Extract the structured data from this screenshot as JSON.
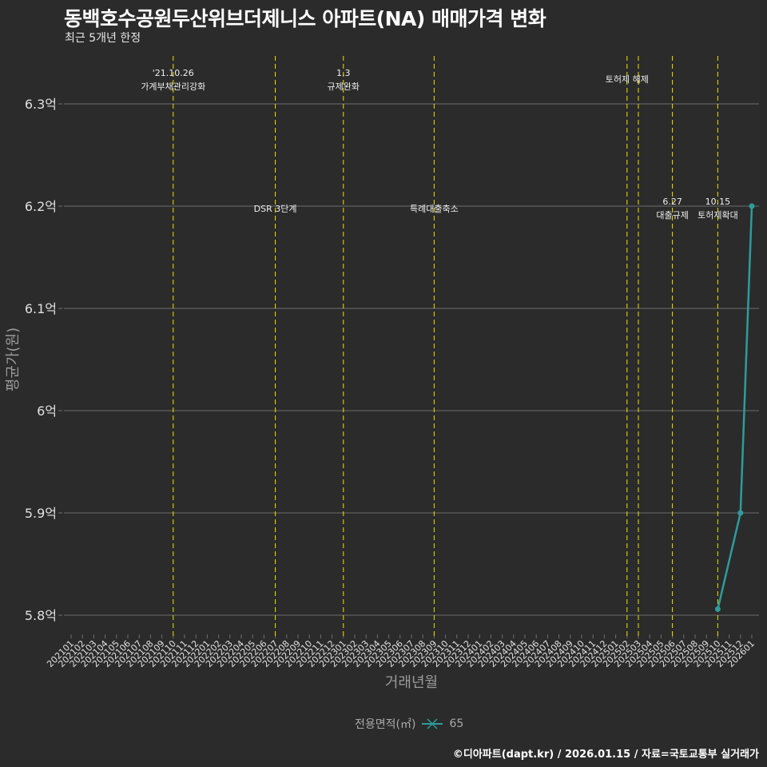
{
  "header": {
    "title": "동백호수공원두산위브더제니스 아파트(NA) 매매가격 변화",
    "subtitle": "최근 5개년 한정"
  },
  "footer": {
    "credit": "©디아파트(dapt.kr) / 2026.01.15 / 자료=국토교통부 실거래가"
  },
  "legend": {
    "title": "전용면적(㎡)",
    "items": [
      {
        "label": "65",
        "color": "#2aa198"
      }
    ]
  },
  "colors": {
    "background": "#2b2b2b",
    "grid": "#6e6e6e",
    "series": "#2e9c9a",
    "event_line": "#e6e600",
    "axis_text": "#e0e0e0",
    "axis_title": "#9a9a9a"
  },
  "chart_data": {
    "type": "line",
    "title": "동백호수공원두산위브더제니스 아파트(NA) 매매가격 변화",
    "subtitle": "최근 5개년 한정",
    "xlabel": "거래년월",
    "ylabel": "평균가(원)",
    "ylim": [
      5.8,
      6.3
    ],
    "y_ticks": [
      {
        "value": 5.8,
        "label": "5.8억"
      },
      {
        "value": 5.9,
        "label": "5.9억"
      },
      {
        "value": 6.0,
        "label": "6억"
      },
      {
        "value": 6.1,
        "label": "6.1억"
      },
      {
        "value": 6.2,
        "label": "6.2억"
      },
      {
        "value": 6.3,
        "label": "6.3억"
      }
    ],
    "categories": [
      "202101",
      "202102",
      "202103",
      "202104",
      "202105",
      "202106",
      "202107",
      "202108",
      "202109",
      "202110",
      "202111",
      "202112",
      "202201",
      "202202",
      "202203",
      "202204",
      "202205",
      "202206",
      "202207",
      "202208",
      "202209",
      "202210",
      "202211",
      "202212",
      "202301",
      "202302",
      "202303",
      "202304",
      "202305",
      "202306",
      "202307",
      "202308",
      "202309",
      "202310",
      "202311",
      "202312",
      "202401",
      "202402",
      "202403",
      "202404",
      "202405",
      "202406",
      "202407",
      "202408",
      "202409",
      "202410",
      "202411",
      "202412",
      "202501",
      "202502",
      "202503",
      "202504",
      "202505",
      "202506",
      "202507",
      "202508",
      "202509",
      "202510",
      "202511",
      "202512",
      "202601"
    ],
    "series": [
      {
        "name": "65",
        "unit": "억",
        "points": [
          {
            "x": "202510",
            "y": 5.806
          },
          {
            "x": "202512",
            "y": 5.9
          },
          {
            "x": "202601",
            "y": 6.2
          }
        ]
      }
    ],
    "annotations": [
      {
        "x": "202110",
        "line1": "'21.10.26",
        "line2": "가계부채관리강화",
        "pos": "top"
      },
      {
        "x": "202207",
        "line1": "",
        "line2": "DSR 3단계",
        "pos": "mid"
      },
      {
        "x": "202301",
        "line1": "1.3",
        "line2": "규제완화",
        "pos": "top"
      },
      {
        "x": "202309",
        "line1": "",
        "line2": "특례대출축소",
        "pos": "mid"
      },
      {
        "x": "202502",
        "line1": "",
        "line2": "토허제 해제",
        "pos": "top"
      },
      {
        "x": "202503",
        "line1": "",
        "line2": "",
        "pos": "none"
      },
      {
        "x": "202506",
        "line1": "6.27",
        "line2": "대출규제",
        "pos": "mid"
      },
      {
        "x": "202510",
        "line1": "10.15",
        "line2": "토허제확대",
        "pos": "mid"
      }
    ],
    "grid": true,
    "legend_position": "bottom"
  }
}
